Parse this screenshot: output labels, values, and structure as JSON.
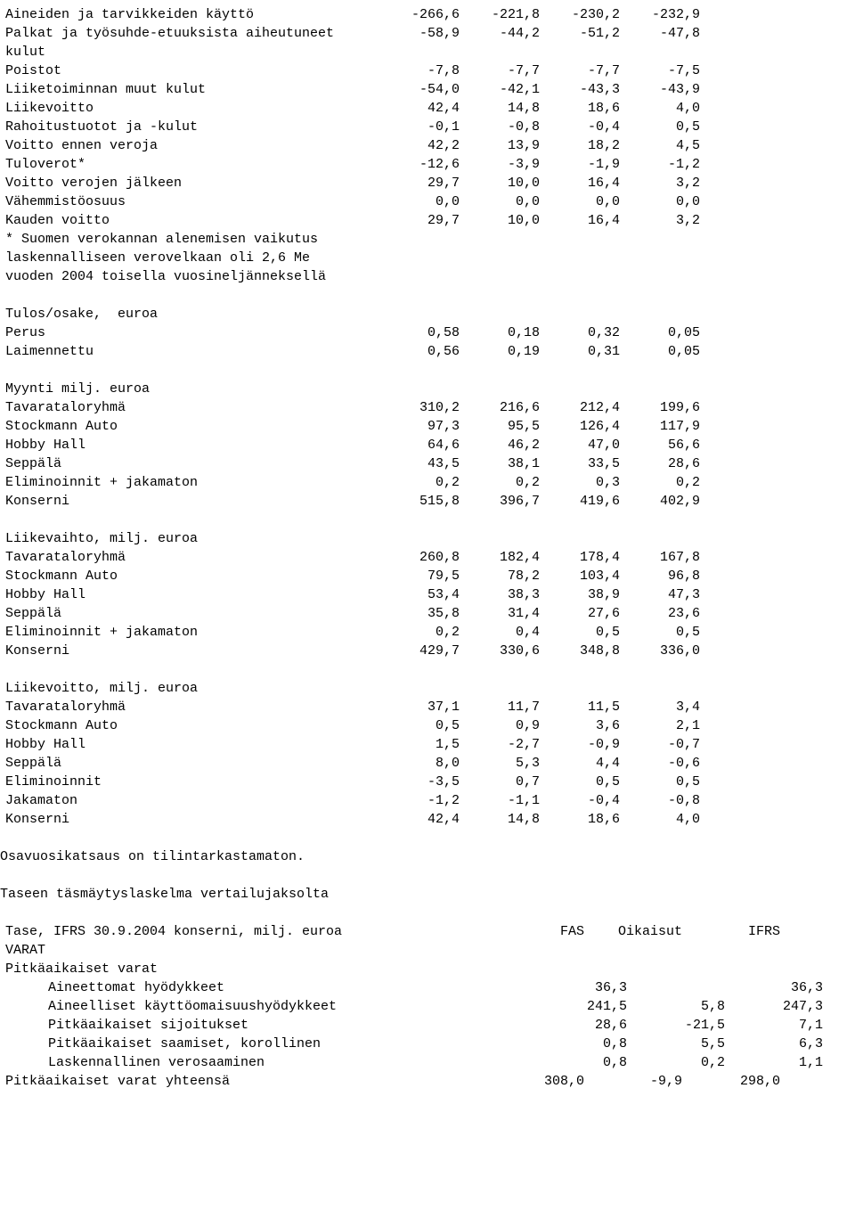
{
  "main": [
    {
      "label": "Aineiden ja tarvikkeiden käyttö",
      "c": [
        "-266,6",
        "-221,8",
        "-230,2",
        "-232,9"
      ]
    },
    {
      "label": "Palkat ja työsuhde-etuuksista aiheutuneet",
      "c": [
        "-58,9",
        "-44,2",
        "-51,2",
        "-47,8"
      ]
    },
    {
      "label": "kulut",
      "c": [
        "",
        "",
        "",
        ""
      ]
    },
    {
      "label": "Poistot",
      "c": [
        "-7,8",
        "-7,7",
        "-7,7",
        "-7,5"
      ]
    },
    {
      "label": "Liiketoiminnan muut kulut",
      "c": [
        "-54,0",
        "-42,1",
        "-43,3",
        "-43,9"
      ]
    },
    {
      "label": "Liikevoitto",
      "c": [
        "42,4",
        "14,8",
        "18,6",
        "4,0"
      ]
    },
    {
      "label": "Rahoitustuotot ja -kulut",
      "c": [
        "-0,1",
        "-0,8",
        "-0,4",
        "0,5"
      ]
    },
    {
      "label": "Voitto ennen veroja",
      "c": [
        "42,2",
        "13,9",
        "18,2",
        "4,5"
      ]
    },
    {
      "label": "Tuloverot*",
      "c": [
        "-12,6",
        "-3,9",
        "-1,9",
        "-1,2"
      ]
    },
    {
      "label": "Voitto verojen jälkeen",
      "c": [
        "29,7",
        "10,0",
        "16,4",
        "3,2"
      ]
    },
    {
      "label": "Vähemmistöosuus",
      "c": [
        "0,0",
        "0,0",
        "0,0",
        "0,0"
      ]
    },
    {
      "label": "Kauden voitto",
      "c": [
        "29,7",
        "10,0",
        "16,4",
        "3,2"
      ]
    },
    {
      "label": "* Suomen verokannan alenemisen vaikutus",
      "c": [
        "",
        "",
        "",
        ""
      ]
    },
    {
      "label": "laskennalliseen verovelkaan oli 2,6 Me",
      "c": [
        "",
        "",
        "",
        ""
      ]
    },
    {
      "label": "vuoden 2004 toisella vuosineljänneksellä",
      "c": [
        "",
        "",
        "",
        ""
      ]
    }
  ],
  "eps_header": "Tulos/osake,  euroa",
  "eps": [
    {
      "label": "Perus",
      "c": [
        "0,58",
        "0,18",
        "0,32",
        "0,05"
      ]
    },
    {
      "label": "Laimennettu",
      "c": [
        "0,56",
        "0,19",
        "0,31",
        "0,05"
      ]
    }
  ],
  "sales_header": "Myynti milj. euroa",
  "sales": [
    {
      "label": "Tavarataloryhmä",
      "c": [
        "310,2",
        "216,6",
        "212,4",
        "199,6"
      ]
    },
    {
      "label": "Stockmann Auto",
      "c": [
        "97,3",
        "95,5",
        "126,4",
        "117,9"
      ]
    },
    {
      "label": "Hobby Hall",
      "c": [
        "64,6",
        "46,2",
        "47,0",
        "56,6"
      ]
    },
    {
      "label": "Seppälä",
      "c": [
        "43,5",
        "38,1",
        "33,5",
        "28,6"
      ]
    },
    {
      "label": "Eliminoinnit + jakamaton",
      "c": [
        "0,2",
        "0,2",
        "0,3",
        "0,2"
      ]
    },
    {
      "label": "Konserni",
      "c": [
        "515,8",
        "396,7",
        "419,6",
        "402,9"
      ]
    }
  ],
  "rev_header": "Liikevaihto, milj. euroa",
  "rev": [
    {
      "label": "Tavarataloryhmä",
      "c": [
        "260,8",
        "182,4",
        "178,4",
        "167,8"
      ]
    },
    {
      "label": "Stockmann Auto",
      "c": [
        "79,5",
        "78,2",
        "103,4",
        "96,8"
      ]
    },
    {
      "label": "Hobby Hall",
      "c": [
        "53,4",
        "38,3",
        "38,9",
        "47,3"
      ]
    },
    {
      "label": "Seppälä",
      "c": [
        "35,8",
        "31,4",
        "27,6",
        "23,6"
      ]
    },
    {
      "label": "Eliminoinnit + jakamaton",
      "c": [
        "0,2",
        "0,4",
        "0,5",
        "0,5"
      ]
    },
    {
      "label": "Konserni",
      "c": [
        "429,7",
        "330,6",
        "348,8",
        "336,0"
      ]
    }
  ],
  "op_header": "Liikevoitto, milj. euroa",
  "op": [
    {
      "label": "Tavarataloryhmä",
      "c": [
        "37,1",
        "11,7",
        "11,5",
        "3,4"
      ]
    },
    {
      "label": "Stockmann Auto",
      "c": [
        "0,5",
        "0,9",
        "3,6",
        "2,1"
      ]
    },
    {
      "label": "Hobby Hall",
      "c": [
        "1,5",
        "-2,7",
        "-0,9",
        "-0,7"
      ]
    },
    {
      "label": "Seppälä",
      "c": [
        "8,0",
        "5,3",
        "4,4",
        "-0,6"
      ]
    },
    {
      "label": "Eliminoinnit",
      "c": [
        "-3,5",
        "0,7",
        "0,5",
        "0,5"
      ]
    },
    {
      "label": "Jakamaton",
      "c": [
        "-1,2",
        "-1,1",
        "-0,4",
        "-0,8"
      ]
    },
    {
      "label": "Konserni",
      "c": [
        "42,4",
        "14,8",
        "18,6",
        "4,0"
      ]
    }
  ],
  "note1": "Osavuosikatsaus on tilintarkastamaton.",
  "note2": "Taseen täsmäytyslaskelma vertailujaksolta",
  "bal_header": {
    "label": "Tase, IFRS 30.9.2004 konserni, milj. euroa",
    "c": [
      "FAS",
      "Oikaisut",
      "IFRS"
    ]
  },
  "bal_rows": [
    {
      "label": "VARAT",
      "c": [
        "",
        "",
        ""
      ],
      "indent": false
    },
    {
      "label": "Pitkäaikaiset varat",
      "c": [
        "",
        "",
        ""
      ],
      "indent": false
    },
    {
      "label": "Aineettomat hyödykkeet",
      "c": [
        "36,3",
        "",
        "36,3"
      ],
      "indent": true
    },
    {
      "label": "Aineelliset käyttöomaisuushyödykkeet",
      "c": [
        "241,5",
        "5,8",
        "247,3"
      ],
      "indent": true
    },
    {
      "label": "Pitkäaikaiset sijoitukset",
      "c": [
        "28,6",
        "-21,5",
        "7,1"
      ],
      "indent": true
    },
    {
      "label": "Pitkäaikaiset saamiset, korollinen",
      "c": [
        "0,8",
        "5,5",
        "6,3"
      ],
      "indent": true
    },
    {
      "label": "Laskennallinen verosaaminen",
      "c": [
        "0,8",
        "0,2",
        "1,1"
      ],
      "indent": true
    },
    {
      "label": "Pitkäaikaiset varat yhteensä",
      "c": [
        "308,0",
        "-9,9",
        "298,0"
      ],
      "indent": false
    }
  ]
}
